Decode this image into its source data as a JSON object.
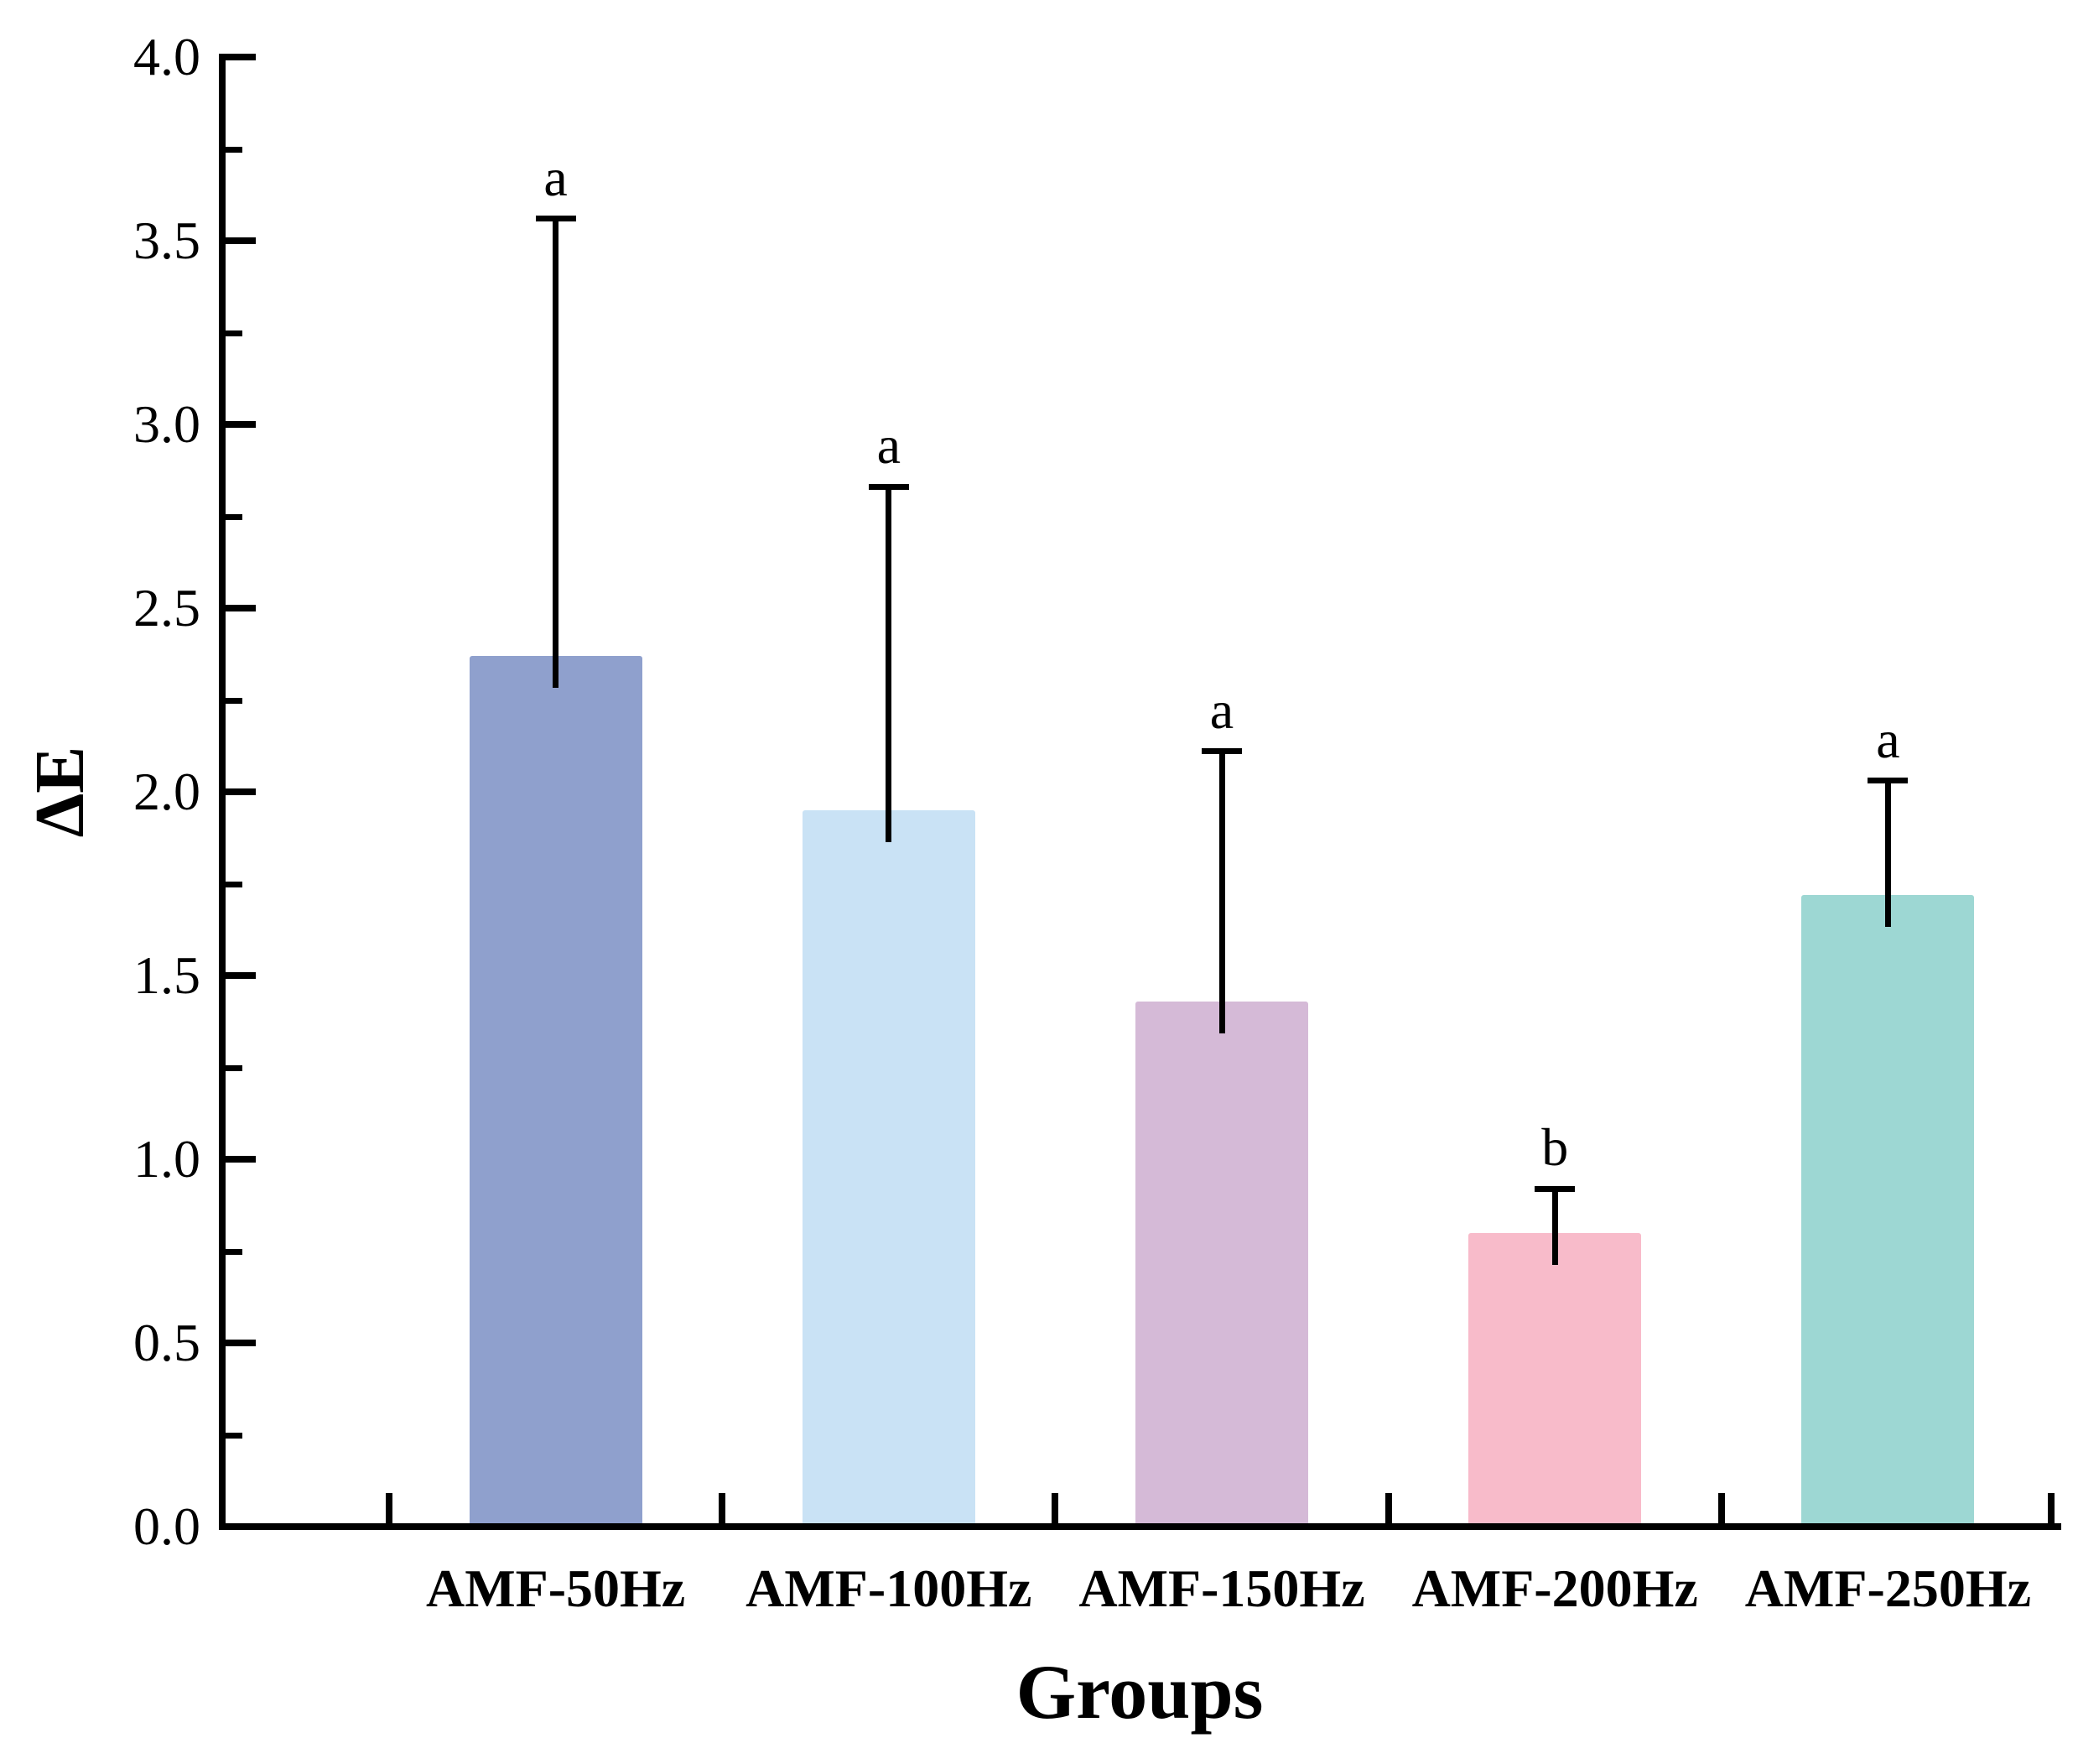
{
  "chart_data": {
    "type": "bar",
    "title": "",
    "xlabel": "Groups",
    "ylabel": "ΔE",
    "categories": [
      "AMF-50Hz",
      "AMF-100Hz",
      "AMF-150Hz",
      "AMF-200Hz",
      "AMF-250Hz"
    ],
    "values": [
      2.37,
      1.95,
      1.43,
      0.8,
      1.72
    ],
    "error_upper": [
      1.19,
      0.88,
      0.68,
      0.12,
      0.31
    ],
    "sig_letters": [
      "a",
      "a",
      "a",
      "b",
      "a"
    ],
    "bar_colors": [
      "#8fa0cd",
      "#c9e2f5",
      "#d5bad7",
      "#f8bbca",
      "#9dd7d3"
    ],
    "ylim": [
      0.0,
      4.0
    ],
    "y_tick_labels": [
      "0.0",
      "0.5",
      "1.0",
      "1.5",
      "2.0",
      "2.5",
      "3.0",
      "3.5",
      "4.0"
    ],
    "y_major_step": 0.5,
    "y_minor_step": 0.25,
    "grid": false,
    "legend": "none",
    "axis_color": "#000000",
    "background_color": "#ffffff"
  }
}
